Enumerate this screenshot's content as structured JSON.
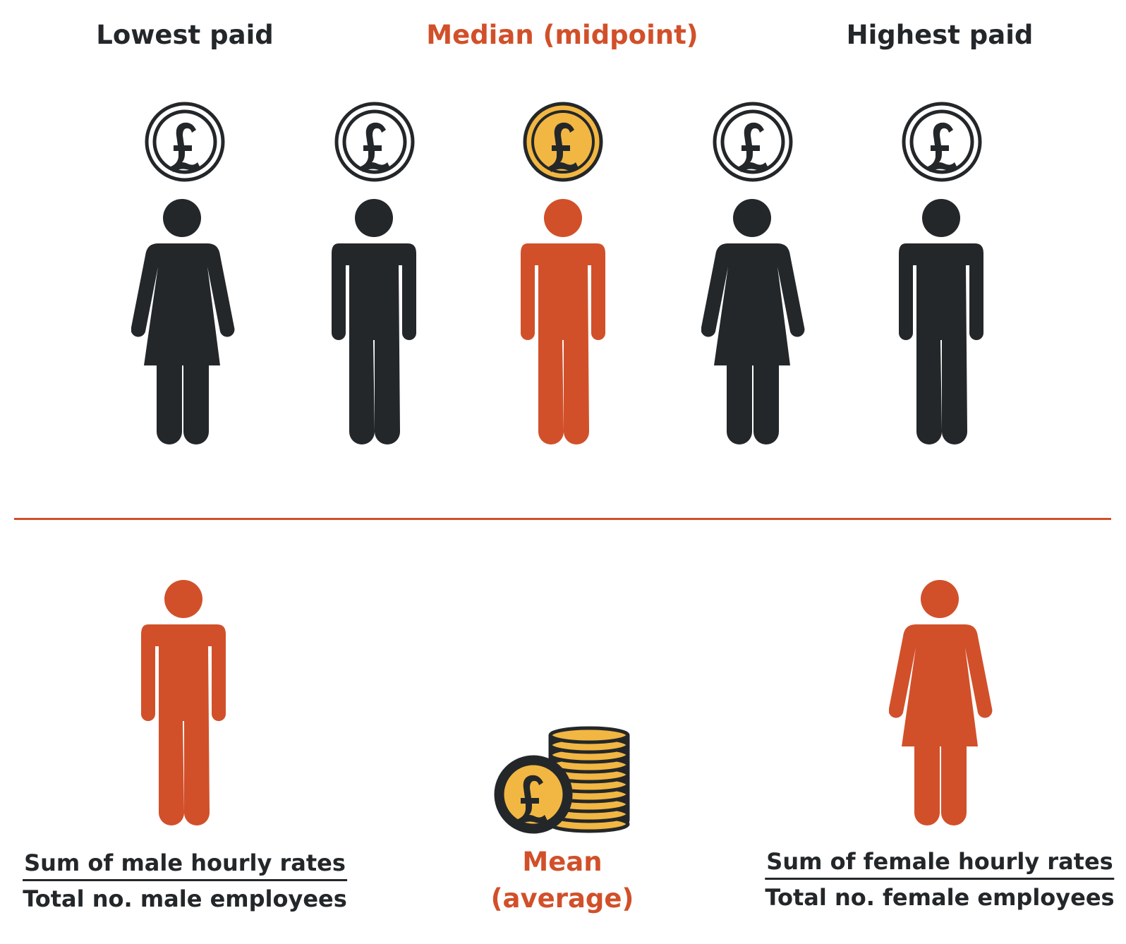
{
  "top": {
    "lowest_label": "Lowest paid",
    "median_label": "Median (midpoint)",
    "highest_label": "Highest paid",
    "figures": [
      "female",
      "male",
      "male",
      "female",
      "male"
    ],
    "highlighted_index": 2
  },
  "bottom": {
    "male_numerator": "Sum of male hourly rates",
    "male_denominator": "Total no. male employees",
    "mean_line1": "Mean",
    "mean_line2": "(average)",
    "female_numerator": "Sum of female hourly rates",
    "female_denominator": "Total no. female employees"
  },
  "colors": {
    "dark": "#24272a",
    "accent": "#d1502a",
    "gold": "#f2b742",
    "background": "#ffffff"
  },
  "icons": {
    "coin": "pound-coin-icon",
    "person_male": "male-person-icon",
    "person_female": "female-person-icon",
    "coin_stack": "coin-stack-icon"
  }
}
